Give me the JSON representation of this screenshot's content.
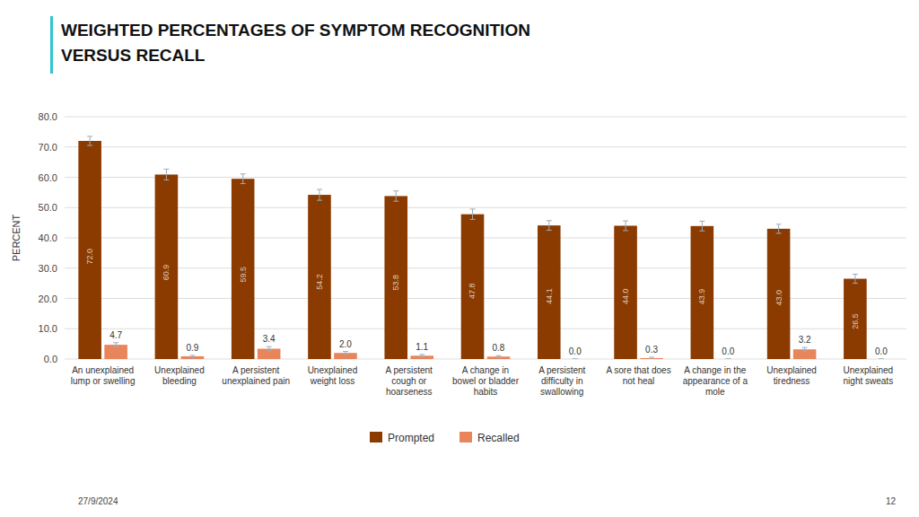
{
  "chart_data": {
    "type": "bar",
    "title": "WEIGHTED PERCENTAGES OF SYMPTOM RECOGNITION\nVERSUS RECALL",
    "categories": [
      "An unexplained\nlump or swelling",
      "Unexplained\nbleeding",
      "A persistent\nunexplained pain",
      "Unexplained\nweight loss",
      "A persistent\ncough or\nhoarseness",
      "A change in\nbowel or bladder\nhabits",
      "A persistent\ndifficulty in\nswallowing",
      "A sore that does\nnot heal",
      "A change in the\nappearance of a\nmole",
      "Unexplained\ntiredness",
      "Unexplained\nnight sweats"
    ],
    "series": [
      {
        "name": "Prompted",
        "color": "#8B3A00",
        "values": [
          72.0,
          60.9,
          59.5,
          54.2,
          53.8,
          47.8,
          44.1,
          44.0,
          43.9,
          43.0,
          26.5
        ],
        "value_labels": [
          "72.0",
          "60.9",
          "59.5",
          "54.2",
          "53.8",
          "47.8",
          "44.1",
          "44.0",
          "43.9",
          "43.0",
          "26.5"
        ],
        "errors": [
          1.5,
          1.8,
          1.6,
          1.8,
          1.7,
          1.7,
          1.6,
          1.6,
          1.6,
          1.5,
          1.5
        ]
      },
      {
        "name": "Recalled",
        "color": "#E8855A",
        "values": [
          4.7,
          0.9,
          3.4,
          2.0,
          1.1,
          0.8,
          0.0,
          0.3,
          0.0,
          3.2,
          0.0
        ],
        "value_labels": [
          "4.7",
          "0.9",
          "3.4",
          "2.0",
          "1.1",
          "0.8",
          "0.0",
          "0.3",
          "0.0",
          "3.2",
          "0.0"
        ],
        "errors": [
          0.7,
          0.3,
          0.7,
          0.5,
          0.4,
          0.3,
          0.05,
          0.3,
          0.05,
          0.6,
          0.05
        ]
      }
    ],
    "ylabel": "PERCENT",
    "ylim": [
      0,
      80
    ],
    "yticks": [
      {
        "value": 0,
        "label": "0.0"
      },
      {
        "value": 10,
        "label": "10.0"
      },
      {
        "value": 20,
        "label": "20.0"
      },
      {
        "value": 30,
        "label": "30.0"
      },
      {
        "value": 40,
        "label": "40.0"
      },
      {
        "value": 50,
        "label": "50.0"
      },
      {
        "value": 60,
        "label": "60.0"
      },
      {
        "value": 70,
        "label": "70.0"
      },
      {
        "value": 80,
        "label": "80.0"
      }
    ],
    "grid": true,
    "legend": "bottom",
    "data_labels": true,
    "annotations": [
      "27/9/2024",
      "12"
    ]
  }
}
